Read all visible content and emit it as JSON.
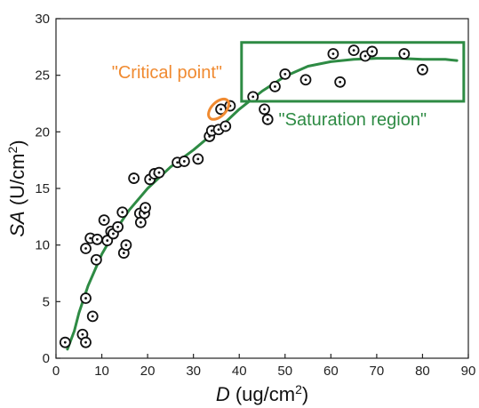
{
  "chart_data": {
    "type": "scatter",
    "xlabel": {
      "italic": "D",
      "rest": " (ug/cm",
      "sup": "2",
      "close": ")"
    },
    "ylabel": {
      "italic": "SA",
      "rest": " (U/cm",
      "sup": "2",
      "close": ")"
    },
    "xlim": [
      0,
      90
    ],
    "ylim": [
      0,
      30
    ],
    "xticks": [
      0,
      10,
      20,
      30,
      40,
      50,
      60,
      70,
      80,
      90
    ],
    "yticks": [
      0,
      5,
      10,
      15,
      20,
      25,
      30
    ],
    "grid": false,
    "colors": {
      "points": "#111111",
      "fit": "#2e8b44",
      "critical": "#f08a30",
      "saturation": "#2e8b44"
    },
    "series": [
      {
        "marker": "circle-dot",
        "points": [
          [
            2,
            1.4
          ],
          [
            5.8,
            2.1
          ],
          [
            6.5,
            1.4
          ],
          [
            6.5,
            5.3
          ],
          [
            6.5,
            9.7
          ],
          [
            7.5,
            10.6
          ],
          [
            8,
            3.7
          ],
          [
            8.8,
            8.7
          ],
          [
            9,
            10.5
          ],
          [
            10.5,
            12.2
          ],
          [
            11.2,
            10.4
          ],
          [
            12,
            11.2
          ],
          [
            12.5,
            11.0
          ],
          [
            13.5,
            11.6
          ],
          [
            14.5,
            12.9
          ],
          [
            14.8,
            9.3
          ],
          [
            15.3,
            10.0
          ],
          [
            17,
            15.9
          ],
          [
            18.3,
            12.8
          ],
          [
            18.5,
            12.0
          ],
          [
            19.3,
            12.8
          ],
          [
            19.5,
            13.3
          ],
          [
            20.5,
            15.8
          ],
          [
            21.5,
            16.3
          ],
          [
            22.5,
            16.4
          ],
          [
            26.5,
            17.3
          ],
          [
            28,
            17.4
          ],
          [
            31,
            17.6
          ],
          [
            33.5,
            19.6
          ],
          [
            34,
            20.1
          ],
          [
            35.5,
            20.2
          ],
          [
            36,
            22.0
          ],
          [
            37,
            20.5
          ],
          [
            38,
            22.3
          ],
          [
            43,
            23.1
          ],
          [
            45.5,
            22.0
          ],
          [
            46.2,
            21.1
          ],
          [
            47.8,
            24.0
          ],
          [
            50,
            25.1
          ],
          [
            54.5,
            24.6
          ],
          [
            60.5,
            26.9
          ],
          [
            62,
            24.4
          ],
          [
            65,
            27.2
          ],
          [
            67.5,
            26.7
          ],
          [
            69,
            27.1
          ],
          [
            76,
            26.9
          ],
          [
            80,
            25.5
          ]
        ]
      }
    ],
    "fit_curve": [
      [
        2.5,
        0.8
      ],
      [
        4,
        2.4
      ],
      [
        5,
        4.0
      ],
      [
        7,
        6.4
      ],
      [
        10,
        9.2
      ],
      [
        13,
        11.3
      ],
      [
        16,
        13.1
      ],
      [
        20,
        15.0
      ],
      [
        25,
        16.9
      ],
      [
        30,
        18.4
      ],
      [
        35,
        20.1
      ],
      [
        40,
        22.0
      ],
      [
        45,
        23.6
      ],
      [
        50,
        24.9
      ],
      [
        55,
        25.8
      ],
      [
        60,
        26.2
      ],
      [
        65,
        26.4
      ],
      [
        70,
        26.5
      ],
      [
        75,
        26.5
      ],
      [
        80,
        26.4
      ],
      [
        85,
        26.4
      ],
      [
        87.5,
        26.3
      ]
    ],
    "annotations": [
      {
        "text": "\"Critical point\"",
        "anchor": [
          35.5,
          22.0
        ]
      },
      {
        "text": "\"Saturation region\"",
        "x_range": [
          40.5,
          89
        ],
        "y_range": [
          22.7,
          27.9
        ]
      }
    ]
  }
}
